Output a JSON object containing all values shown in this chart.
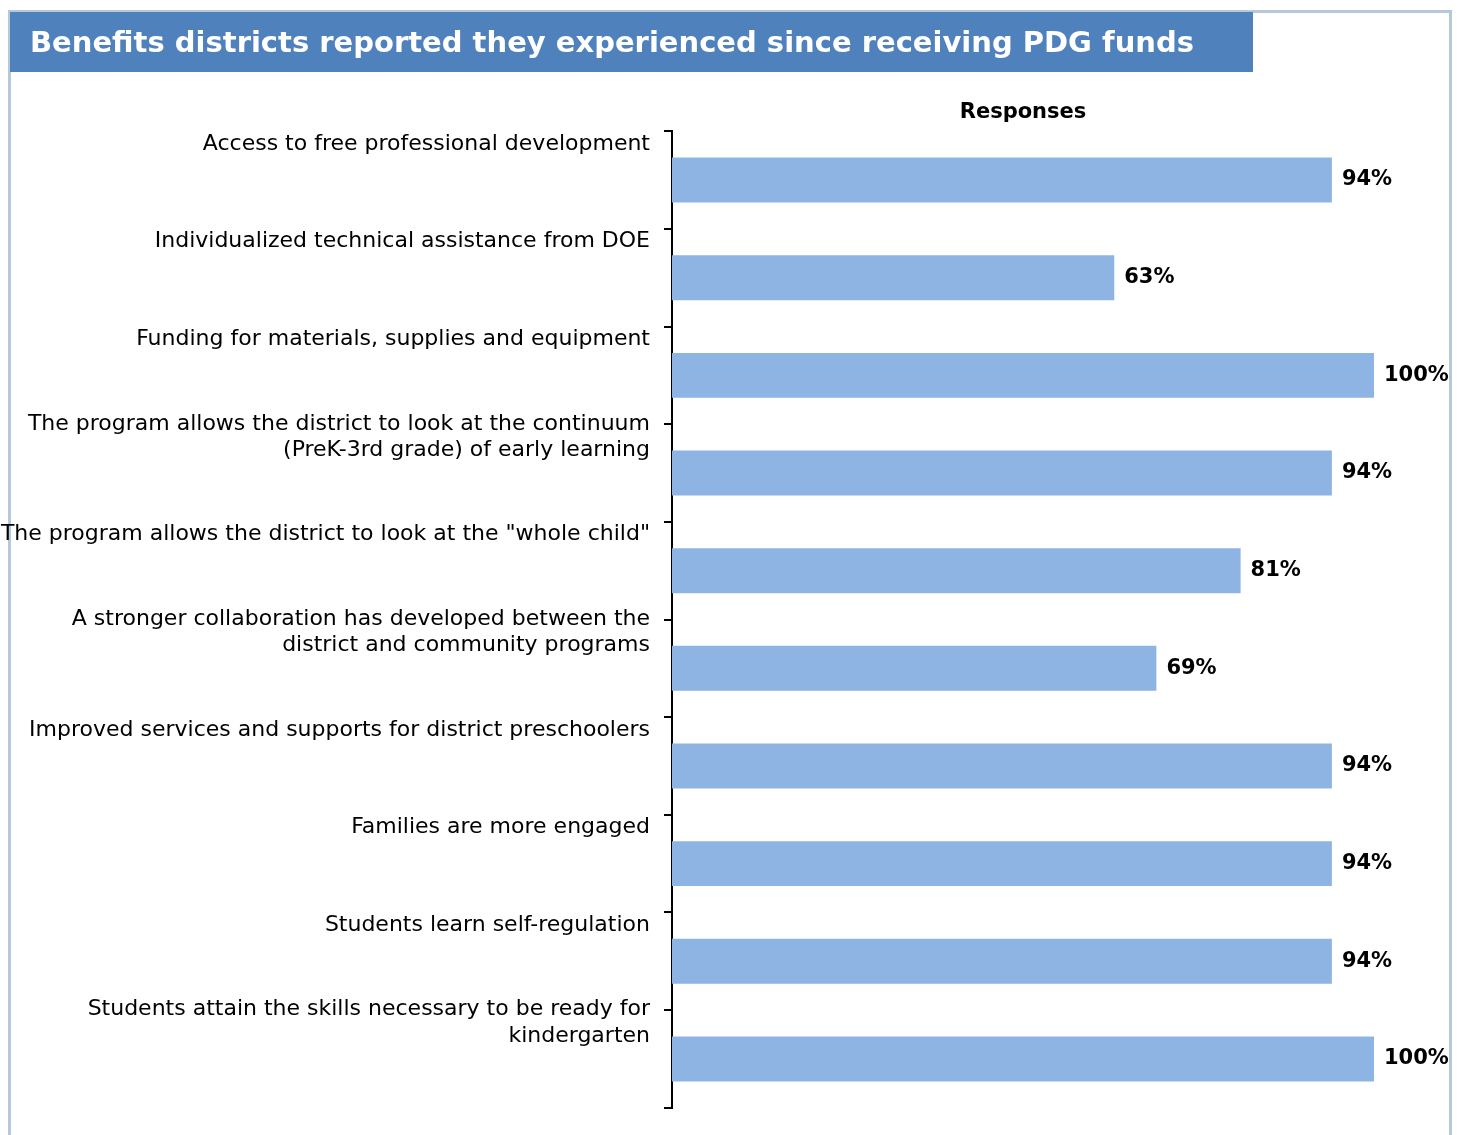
{
  "chart_data": {
    "type": "bar",
    "orientation": "horizontal",
    "title": "Benefits districts reported they experienced since receiving PDG funds",
    "xlabel": "Responses",
    "categories": [
      "Access to free professional development",
      "Individualized technical assistance from DOE",
      "Funding for materials, supplies and equipment",
      "The program allows the district to look at the continuum (PreK-3rd grade) of early learning",
      "The program allows the district to look at the \"whole child\"",
      "A stronger collaboration has developed between the district and community programs",
      "Improved services and supports for district preschoolers",
      "Families are more engaged",
      "Students learn self-regulation",
      "Students attain the skills necessary to be ready for kindergarten"
    ],
    "values": [
      94,
      63,
      100,
      94,
      81,
      69,
      94,
      94,
      94,
      100
    ],
    "value_labels": [
      "94%",
      "63%",
      "100%",
      "94%",
      "81%",
      "69%",
      "94%",
      "94%",
      "94%",
      "100%"
    ],
    "color": "#8eb4e3",
    "xlim": [
      0,
      100
    ],
    "grid": false,
    "legend": false,
    "tick_labels": "y"
  }
}
